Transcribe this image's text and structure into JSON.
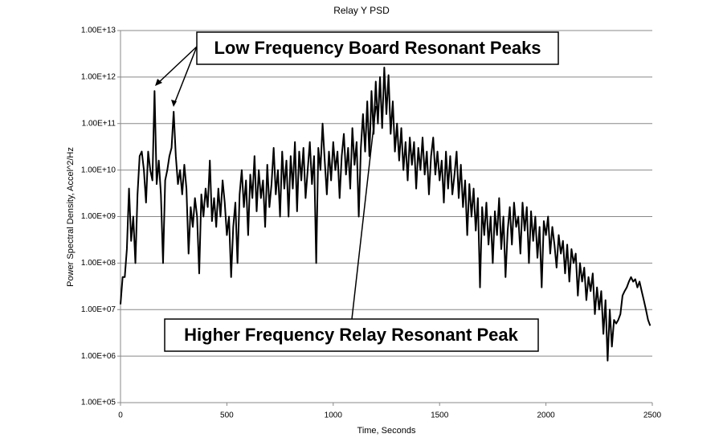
{
  "chart_data": {
    "type": "line",
    "title": "Relay Y PSD",
    "x_label": "Time, Seconds",
    "y_label": "Power Spectral Density, Accel^2/Hz",
    "log_y": true,
    "grid": true,
    "color": "#000000",
    "xlim": [
      0,
      2500
    ],
    "xticks": [
      0,
      500,
      1000,
      1500,
      2000,
      2500
    ],
    "ylim": [
      100000,
      10000000000000
    ],
    "yticks": [
      {
        "value": 100000,
        "label": "1.00E+05"
      },
      {
        "value": 1000000,
        "label": "1.00E+06"
      },
      {
        "value": 10000000,
        "label": "1.00E+07"
      },
      {
        "value": 100000000,
        "label": "1.00E+08"
      },
      {
        "value": 1000000000,
        "label": "1.00E+09"
      },
      {
        "value": 10000000000,
        "label": "1.00E+10"
      },
      {
        "value": 100000000000,
        "label": "1.00E+11"
      },
      {
        "value": 1000000000000,
        "label": "1.00E+12"
      },
      {
        "value": 10000000000000,
        "label": "1.00E+13"
      }
    ],
    "annotations": [
      "Low Frequency Board Resonant Peaks",
      "Higher Frequency Relay Resonant Peak"
    ],
    "x": [
      0,
      10,
      20,
      30,
      40,
      50,
      60,
      70,
      80,
      90,
      100,
      110,
      120,
      130,
      140,
      150,
      160,
      170,
      180,
      190,
      200,
      210,
      220,
      230,
      240,
      250,
      260,
      270,
      280,
      290,
      300,
      310,
      320,
      330,
      340,
      350,
      360,
      370,
      380,
      390,
      400,
      410,
      420,
      430,
      440,
      450,
      460,
      470,
      480,
      490,
      500,
      510,
      520,
      530,
      540,
      550,
      560,
      570,
      580,
      590,
      600,
      610,
      620,
      630,
      640,
      650,
      660,
      670,
      680,
      690,
      700,
      710,
      720,
      730,
      740,
      750,
      760,
      770,
      780,
      790,
      800,
      810,
      820,
      830,
      840,
      850,
      860,
      870,
      880,
      890,
      900,
      910,
      920,
      930,
      940,
      950,
      960,
      970,
      980,
      990,
      1000,
      1010,
      1020,
      1030,
      1040,
      1050,
      1060,
      1070,
      1080,
      1090,
      1100,
      1110,
      1120,
      1130,
      1140,
      1150,
      1160,
      1170,
      1180,
      1190,
      1200,
      1210,
      1220,
      1230,
      1240,
      1250,
      1260,
      1270,
      1280,
      1290,
      1300,
      1310,
      1320,
      1330,
      1340,
      1350,
      1360,
      1370,
      1380,
      1390,
      1400,
      1410,
      1420,
      1430,
      1440,
      1450,
      1460,
      1470,
      1480,
      1490,
      1500,
      1510,
      1520,
      1530,
      1540,
      1550,
      1560,
      1570,
      1580,
      1590,
      1600,
      1610,
      1620,
      1630,
      1640,
      1650,
      1660,
      1670,
      1680,
      1690,
      1700,
      1710,
      1720,
      1730,
      1740,
      1750,
      1760,
      1770,
      1780,
      1790,
      1800,
      1810,
      1820,
      1830,
      1840,
      1850,
      1860,
      1870,
      1880,
      1890,
      1900,
      1910,
      1920,
      1930,
      1940,
      1950,
      1960,
      1970,
      1980,
      1990,
      2000,
      2010,
      2020,
      2030,
      2040,
      2050,
      2060,
      2070,
      2080,
      2090,
      2100,
      2110,
      2120,
      2130,
      2140,
      2150,
      2160,
      2170,
      2180,
      2190,
      2200,
      2210,
      2220,
      2230,
      2240,
      2250,
      2260,
      2270,
      2280,
      2290,
      2300,
      2310,
      2320,
      2330,
      2340,
      2350,
      2360,
      2370,
      2380,
      2390,
      2400,
      2410,
      2420,
      2430,
      2440,
      2450,
      2460,
      2470,
      2480,
      2490
    ],
    "values": [
      13000000.0,
      50000000.0,
      50000000.0,
      200000000.0,
      4000000000.0,
      300000000.0,
      1000000000.0,
      100000000.0,
      3000000000.0,
      20000000000.0,
      25000000000.0,
      10000000000.0,
      2000000000.0,
      25000000000.0,
      10000000000.0,
      6000000000.0,
      500000000000.0,
      5000000000.0,
      16000000000.0,
      3000000000.0,
      100000000.0,
      6000000000.0,
      10000000000.0,
      20000000000.0,
      30000000000.0,
      180000000000.0,
      20000000000.0,
      5000000000.0,
      10000000000.0,
      3000000000.0,
      13000000000.0,
      4000000000.0,
      160000000.0,
      1600000000.0,
      600000000.0,
      2500000000.0,
      1000000000.0,
      60000000.0,
      3000000000.0,
      1000000000.0,
      4000000000.0,
      1600000000.0,
      16000000000.0,
      800000000.0,
      2500000000.0,
      600000000.0,
      4000000000.0,
      1000000000.0,
      6000000000.0,
      2000000000.0,
      400000000.0,
      1000000000.0,
      50000000.0,
      600000000.0,
      2000000000.0,
      100000000.0,
      3000000000.0,
      10000000000.0,
      1600000000.0,
      6000000000.0,
      400000000.0,
      8000000000.0,
      2500000000.0,
      20000000000.0,
      1300000000.0,
      10000000000.0,
      2500000000.0,
      6000000000.0,
      600000000.0,
      13000000000.0,
      1600000000.0,
      5000000000.0,
      30000000000.0,
      3000000000.0,
      10000000000.0,
      1000000000.0,
      25000000000.0,
      4000000000.0,
      16000000000.0,
      1000000000.0,
      20000000000.0,
      4000000000.0,
      40000000000.0,
      1300000000.0,
      25000000000.0,
      6000000000.0,
      30000000000.0,
      2500000000.0,
      10000000000.0,
      40000000000.0,
      5000000000.0,
      20000000000.0,
      100000000.0,
      30000000000.0,
      10000000000.0,
      100000000000.0,
      16000000000.0,
      3000000000.0,
      25000000000.0,
      6000000000.0,
      40000000000.0,
      10000000000.0,
      25000000000.0,
      2500000000.0,
      20000000000.0,
      60000000000.0,
      8000000000.0,
      30000000000.0,
      4000000000.0,
      80000000000.0,
      13000000000.0,
      40000000000.0,
      1000000000.0,
      30000000000.0,
      160000000000.0,
      25000000000.0,
      300000000000.0,
      20000000000.0,
      500000000000.0,
      60000000000.0,
      800000000000.0,
      100000000000.0,
      1000000000000.0,
      80000000000.0,
      1600000000000.0,
      160000000000.0,
      1100000000000.0,
      60000000000.0,
      300000000000.0,
      25000000000.0,
      100000000000.0,
      16000000000.0,
      80000000000.0,
      10000000000.0,
      40000000000.0,
      6000000000.0,
      50000000000.0,
      13000000000.0,
      40000000000.0,
      4000000000.0,
      30000000000.0,
      10000000000.0,
      50000000000.0,
      8000000000.0,
      25000000000.0,
      3000000000.0,
      20000000000.0,
      50000000000.0,
      8000000000.0,
      25000000000.0,
      6000000000.0,
      16000000000.0,
      2000000000.0,
      25000000000.0,
      4000000000.0,
      20000000000.0,
      3000000000.0,
      8000000000.0,
      25000000000.0,
      2500000000.0,
      13000000000.0,
      1600000000.0,
      6000000000.0,
      400000000.0,
      5000000000.0,
      1000000000.0,
      4000000000.0,
      500000000.0,
      2500000000.0,
      30000000.0,
      1600000000.0,
      400000000.0,
      2000000000.0,
      250000000.0,
      1000000000.0,
      100000000.0,
      1300000000.0,
      400000000.0,
      2500000000.0,
      200000000.0,
      1000000000.0,
      50000000.0,
      500000000.0,
      1600000000.0,
      250000000.0,
      2000000000.0,
      600000000.0,
      1000000000.0,
      160000000.0,
      2000000000.0,
      500000000.0,
      1600000000.0,
      100000000.0,
      1300000000.0,
      300000000.0,
      1000000000.0,
      130000000.0,
      600000000.0,
      30000000.0,
      800000000.0,
      400000000.0,
      1000000000.0,
      160000000.0,
      600000000.0,
      250000000.0,
      80000000.0,
      400000000.0,
      160000000.0,
      300000000.0,
      60000000.0,
      250000000.0,
      40000000.0,
      200000000.0,
      100000000.0,
      160000000.0,
      20000000.0,
      100000000.0,
      40000000.0,
      80000000.0,
      16000000.0,
      50000000.0,
      25000000.0,
      60000000.0,
      8000000.0,
      30000000.0,
      10000000.0,
      25000000.0,
      3000000.0,
      16000000.0,
      800000.0,
      10000000.0,
      1600000.0,
      6000000.0,
      5000000.0,
      6000000.0,
      8000000.0,
      20000000.0,
      25000000.0,
      30000000.0,
      40000000.0,
      50000000.0,
      40000000.0,
      45000000.0,
      30000000.0,
      40000000.0,
      25000000.0,
      16000000.0,
      10000000.0,
      6000000.0,
      4500000.0
    ]
  }
}
